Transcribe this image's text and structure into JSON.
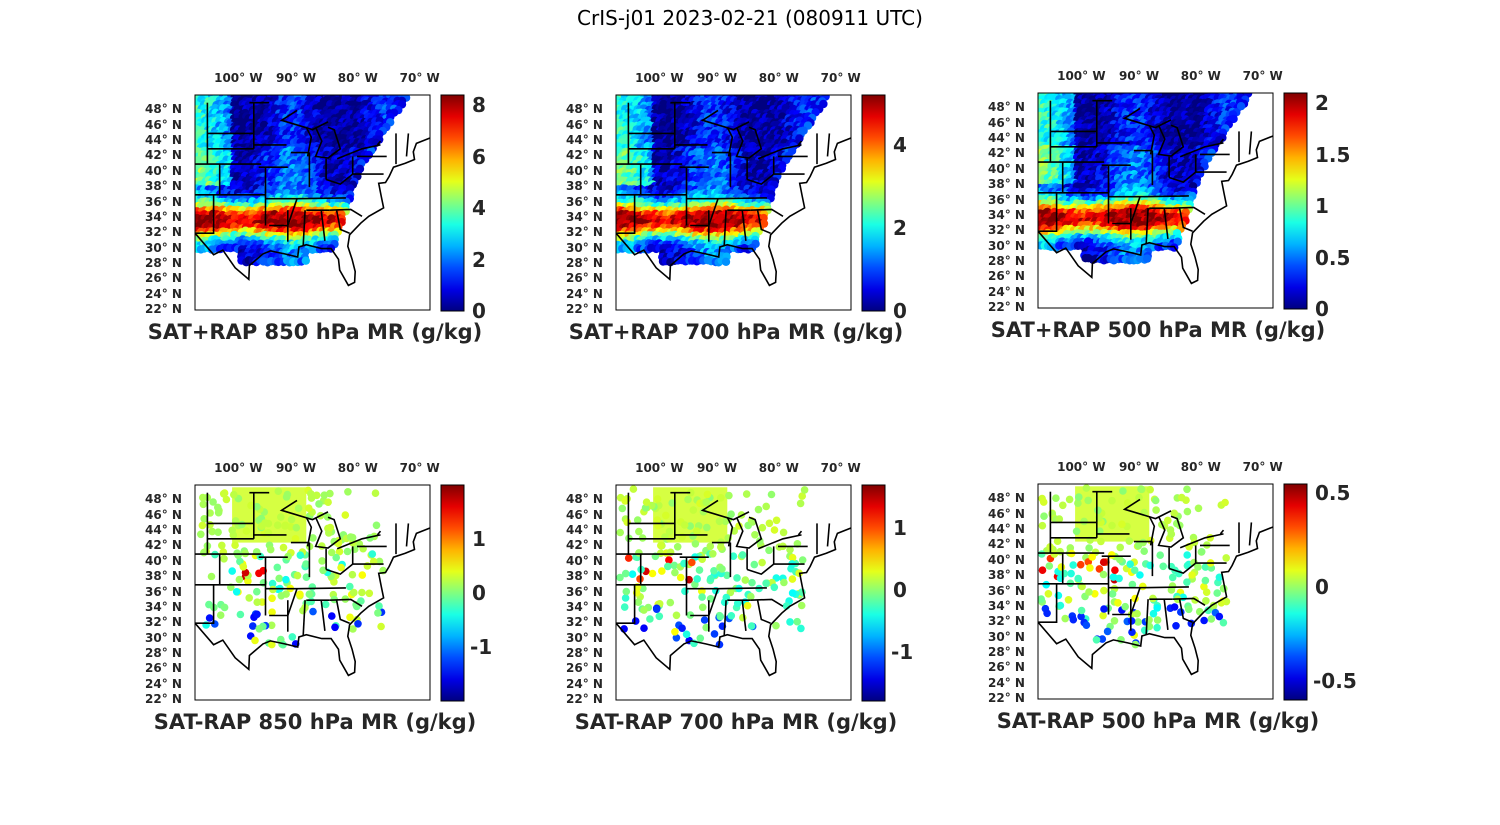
{
  "title": "CrIS-j01 2023-02-21 (080911 UTC)",
  "lon_labels": [
    "100° W",
    "90° W",
    "80° W",
    "70° W"
  ],
  "lat_labels": [
    "48° N",
    "46° N",
    "44° N",
    "42° N",
    "40° N",
    "38° N",
    "36° N",
    "34° N",
    "32° N",
    "30° N",
    "28° N",
    "26° N",
    "24° N",
    "22° N"
  ],
  "panels": [
    {
      "title": "SAT+RAP 850 hPa MR (g/kg)",
      "kind": "sum",
      "level": 850,
      "colorbar": {
        "min": 0,
        "max": 8.4,
        "ticks": [
          "0",
          "2",
          "4",
          "6",
          "8"
        ],
        "tick_values": [
          0,
          2,
          4,
          6,
          8
        ]
      }
    },
    {
      "title": "SAT+RAP 700 hPa MR (g/kg)",
      "kind": "sum",
      "level": 700,
      "colorbar": {
        "min": 0,
        "max": 5.2,
        "ticks": [
          "0",
          "2",
          "4"
        ],
        "tick_values": [
          0,
          2,
          4
        ]
      }
    },
    {
      "title": "SAT+RAP 500 hPa MR (g/kg)",
      "kind": "sum",
      "level": 500,
      "colorbar": {
        "min": 0,
        "max": 2.1,
        "ticks": [
          "0",
          "0.5",
          "1",
          "1.5",
          "2"
        ],
        "tick_values": [
          0,
          0.5,
          1,
          1.5,
          2
        ]
      }
    },
    {
      "title": "SAT-RAP 850 hPa MR (g/kg)",
      "kind": "diff",
      "level": 850,
      "colorbar": {
        "min": -2,
        "max": 2,
        "ticks": [
          "-1",
          "0",
          "1"
        ],
        "tick_values": [
          -1,
          0,
          1
        ]
      }
    },
    {
      "title": "SAT-RAP 700 hPa MR (g/kg)",
      "kind": "diff",
      "level": 700,
      "colorbar": {
        "min": -1.8,
        "max": 1.7,
        "ticks": [
          "-1",
          "0",
          "1"
        ],
        "tick_values": [
          -1,
          0,
          1
        ]
      }
    },
    {
      "title": "SAT-RAP 500 hPa MR (g/kg)",
      "kind": "diff",
      "level": 500,
      "colorbar": {
        "min": -0.6,
        "max": 0.55,
        "ticks": [
          "-0.5",
          "0",
          "0.5"
        ],
        "tick_values": [
          -0.5,
          0,
          0.5
        ]
      }
    }
  ],
  "colors": {
    "frame": "#000000",
    "tick_text": "#262626",
    "background": "#ffffff"
  }
}
